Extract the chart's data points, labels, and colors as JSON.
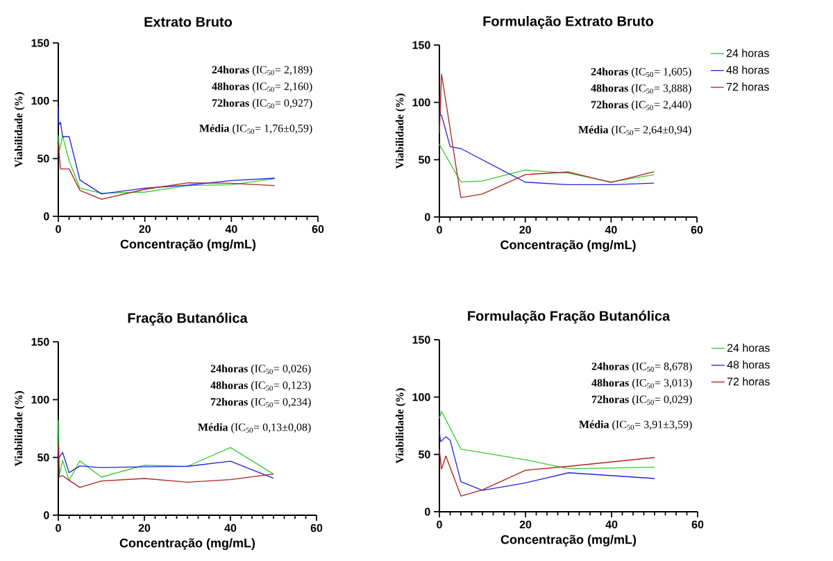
{
  "chart_data": [
    {
      "type": "line",
      "title": "Extrato Bruto",
      "xlabel": "Concentração (mg/mL)",
      "ylabel": "Viabilidade (%)",
      "xlim": [
        0,
        60
      ],
      "ylim": [
        0,
        150
      ],
      "xticks": [
        0,
        20,
        40,
        60
      ],
      "yticks": [
        0,
        50,
        100,
        150
      ],
      "annotations": [
        "**24horas** (IC$_{50}$= 2,189)",
        "**48horas** (IC$_{50}$= 2,160)",
        "**72horas** (IC$_{50}$= 0,927)",
        "**Média** (IC$_{50}$= 1,76±0,59)"
      ],
      "series": [
        {
          "color": "#33cc33",
          "x": [
            0,
            0.25,
            1,
            2.5,
            5,
            10,
            20,
            30,
            40,
            50
          ],
          "values": [
            70,
            57,
            69.6,
            48,
            24.4,
            20,
            21,
            26.6,
            27.4,
            32.6
          ]
        },
        {
          "color": "#2222dd",
          "x": [
            0,
            0.1,
            0.5,
            1,
            2.5,
            5,
            10,
            20,
            30,
            40,
            50
          ],
          "values": [
            95,
            78.8,
            81.4,
            69,
            69,
            31.4,
            19.4,
            24.4,
            27,
            31,
            33
          ]
        },
        {
          "color": "#b22222",
          "x": [
            0,
            0.5,
            2.5,
            5,
            10,
            20,
            30,
            40,
            50
          ],
          "values": [
            62,
            41,
            41,
            22.4,
            14.8,
            23.4,
            29,
            28.6,
            26.6
          ]
        }
      ]
    },
    {
      "type": "line",
      "title": "Formulação Extrato Bruto",
      "xlabel": "Concentração (mg/mL)",
      "ylabel": "Viabilidade (%)",
      "xlim": [
        0,
        60
      ],
      "ylim": [
        0,
        150
      ],
      "xticks": [
        0,
        20,
        40,
        60
      ],
      "yticks": [
        0,
        50,
        100,
        150
      ],
      "legend": "right",
      "annotations": [
        "**24horas** (IC$_{50}$= 1,605)",
        "**48horas** (IC$_{50}$= 3,888)",
        "**72horas** (IC$_{50}$= 2,440)",
        "**Média** (IC$_{50}$= 2,64±0,94)"
      ],
      "series": [
        {
          "name": "24 horas",
          "color": "#33cc33",
          "x": [
            0,
            0.2,
            5,
            10,
            20,
            30,
            40,
            50
          ],
          "values": [
            64,
            62,
            30.6,
            31.5,
            41,
            38.3,
            30.6,
            37
          ]
        },
        {
          "name": "48 horas",
          "color": "#2222dd",
          "x": [
            0,
            0.25,
            0.5,
            2.5,
            5,
            20,
            30,
            40,
            50
          ],
          "values": [
            102,
            89,
            88.7,
            61.5,
            59.7,
            30.4,
            28.2,
            28.2,
            29.6
          ]
        },
        {
          "name": "72 horas",
          "color": "#b22222",
          "x": [
            0,
            0.5,
            5,
            10,
            20,
            30,
            40,
            50
          ],
          "values": [
            73,
            124.6,
            17,
            20,
            37,
            39.3,
            30.2,
            39.5
          ]
        }
      ]
    },
    {
      "type": "line",
      "title": "Fração Butanólica",
      "xlabel": "Concentração (mg/mL)",
      "ylabel": "Viabilidade (%)",
      "xlim": [
        0,
        60
      ],
      "ylim": [
        0,
        150
      ],
      "xticks": [
        0,
        20,
        40,
        60
      ],
      "yticks": [
        0,
        50,
        100,
        150
      ],
      "annotations": [
        "**24horas** (IC$_{50}$= 0,026)",
        "**48horas** (IC$_{50}$= 0,123)",
        "**72horas** (IC$_{50}$= 0,234)",
        "**Média** (IC$_{50}$= 0,13±0,08)"
      ],
      "series": [
        {
          "color": "#33cc33",
          "x": [
            0,
            0.25,
            1,
            2.5,
            5,
            10,
            20,
            30,
            40,
            50
          ],
          "values": [
            82.5,
            35,
            47.3,
            30,
            47,
            33,
            43.3,
            42.3,
            58.6,
            35.6
          ]
        },
        {
          "color": "#2222dd",
          "x": [
            0,
            1,
            2.5,
            5,
            10,
            20,
            30,
            40,
            50
          ],
          "values": [
            49,
            54.3,
            36.8,
            42.7,
            41.2,
            41.9,
            42.3,
            46.7,
            32
          ]
        },
        {
          "color": "#b22222",
          "x": [
            0,
            0.25,
            1,
            2.5,
            5,
            10,
            20,
            30,
            40,
            50
          ],
          "values": [
            61,
            33.2,
            34.2,
            30.2,
            24.1,
            29.6,
            31.8,
            28.6,
            30.8,
            35.6
          ]
        }
      ]
    },
    {
      "type": "line",
      "title": "Formulação Fração Butanólica",
      "xlabel": "Concentração (mg/mL)",
      "ylabel": "Viabilidade (%)",
      "xlim": [
        0,
        60
      ],
      "ylim": [
        0,
        150
      ],
      "xticks": [
        0,
        20,
        40,
        60
      ],
      "yticks": [
        0,
        50,
        100,
        150
      ],
      "legend": "right",
      "annotations": [
        "**24horas** (IC$_{50}$= 8,678)",
        "**48horas** (IC$_{50}$= 3,013)",
        "**72horas** (IC$_{50}$= 0,029)",
        "**Média** (IC$_{50}$= 3,91±3,59)"
      ],
      "series": [
        {
          "name": "24 horas",
          "color": "#33cc33",
          "x": [
            0,
            0.5,
            5,
            20,
            30,
            50
          ],
          "values": [
            81.5,
            87.5,
            54.7,
            45.3,
            37.6,
            38.8
          ]
        },
        {
          "name": "48 horas",
          "color": "#2222dd",
          "x": [
            0,
            0.25,
            0.5,
            1.5,
            2.5,
            5,
            10,
            20,
            30,
            50
          ],
          "values": [
            70.4,
            61.4,
            61.8,
            65.4,
            62.4,
            26.2,
            18.7,
            25.2,
            34,
            29
          ]
        },
        {
          "name": "72 horas",
          "color": "#b22222",
          "x": [
            0,
            0.5,
            1.5,
            5,
            10,
            20,
            30,
            50
          ],
          "values": [
            54.3,
            37.2,
            48.7,
            13.7,
            19.1,
            36.2,
            39.6,
            47.3
          ]
        }
      ]
    }
  ]
}
